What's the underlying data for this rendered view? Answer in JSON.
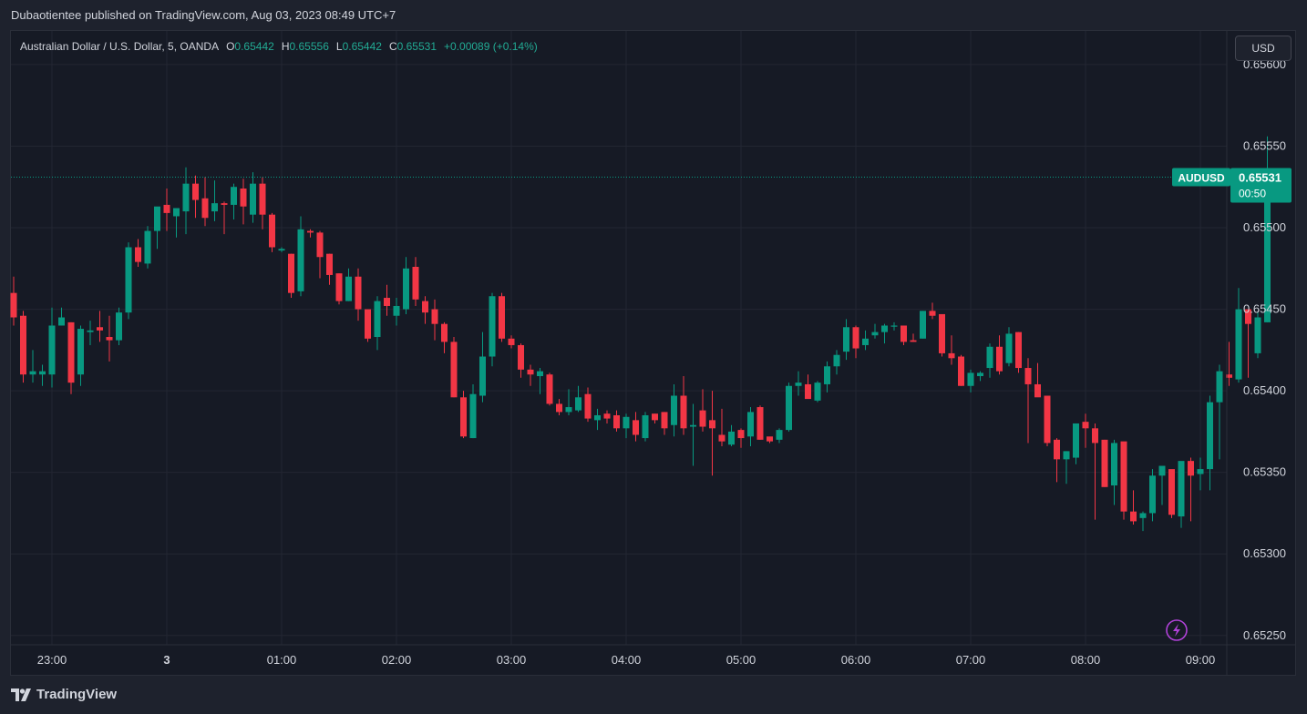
{
  "header": {
    "published_text": "Dubaotientee published on TradingView.com, Aug 03, 2023 08:49 UTC+7"
  },
  "legend": {
    "symbol_text": "Australian Dollar / U.S. Dollar, 5, OANDA",
    "open_label": "O",
    "open_value": "0.65442",
    "high_label": "H",
    "high_value": "0.65556",
    "low_label": "L",
    "low_value": "0.65442",
    "close_label": "C",
    "close_value": "0.65531",
    "change_text": "+0.00089 (+0.14%)"
  },
  "currency_button": {
    "label": "USD"
  },
  "price_tag": {
    "symbol": "AUDUSD",
    "price": "0.65531",
    "countdown": "00:50",
    "color": "#089981"
  },
  "footer": {
    "brand": "TradingView"
  },
  "colors": {
    "up": "#089981",
    "down": "#f23645",
    "grid": "#232632",
    "axis_text": "#d1d4dc",
    "alert_icon": "#b042d8"
  },
  "icons": {
    "alert": "lightning-icon",
    "logo": "tradingview-logo-icon"
  },
  "chart_data": {
    "type": "candlestick",
    "interval": "5",
    "y_ticks": [
      "0.65600",
      "0.65550",
      "0.65500",
      "0.65450",
      "0.65400",
      "0.65350",
      "0.65300",
      "0.65250"
    ],
    "y_range": [
      0.652443,
      0.656206
    ],
    "x_ticks": [
      {
        "label": "23:00",
        "index": 4
      },
      {
        "label": "3",
        "index": 16
      },
      {
        "label": "01:00",
        "index": 28
      },
      {
        "label": "02:00",
        "index": 40
      },
      {
        "label": "03:00",
        "index": 52
      },
      {
        "label": "04:00",
        "index": 64
      },
      {
        "label": "05:00",
        "index": 76
      },
      {
        "label": "06:00",
        "index": 88
      },
      {
        "label": "07:00",
        "index": 100
      },
      {
        "label": "08:00",
        "index": 112
      },
      {
        "label": "09:00",
        "index": 124
      }
    ],
    "grid": true,
    "last_price_line": 0.65531,
    "candles": [
      [
        0.6546,
        0.6547,
        0.6544,
        0.65445
      ],
      [
        0.65446,
        0.65449,
        0.65405,
        0.6541
      ],
      [
        0.6541,
        0.65425,
        0.65405,
        0.65412
      ],
      [
        0.6541,
        0.65416,
        0.65403,
        0.65412
      ],
      [
        0.6541,
        0.65451,
        0.65402,
        0.6544
      ],
      [
        0.6544,
        0.65451,
        0.6544,
        0.65445
      ],
      [
        0.65442,
        0.65442,
        0.65398,
        0.65405
      ],
      [
        0.6541,
        0.6544,
        0.65403,
        0.65438
      ],
      [
        0.65436,
        0.65443,
        0.65428,
        0.65437
      ],
      [
        0.65439,
        0.65449,
        0.6543,
        0.65437
      ],
      [
        0.65433,
        0.65446,
        0.65418,
        0.65431
      ],
      [
        0.65431,
        0.65451,
        0.65428,
        0.65448
      ],
      [
        0.65448,
        0.65491,
        0.65444,
        0.65488
      ],
      [
        0.65488,
        0.65493,
        0.65476,
        0.65479
      ],
      [
        0.65478,
        0.65501,
        0.65475,
        0.65498
      ],
      [
        0.65498,
        0.65511,
        0.65487,
        0.65513
      ],
      [
        0.65514,
        0.65524,
        0.65498,
        0.65509
      ],
      [
        0.65507,
        0.6551,
        0.65494,
        0.65512
      ],
      [
        0.6551,
        0.65537,
        0.65496,
        0.65527
      ],
      [
        0.65527,
        0.65532,
        0.65506,
        0.65517
      ],
      [
        0.65518,
        0.65531,
        0.65501,
        0.65506
      ],
      [
        0.6551,
        0.65529,
        0.65504,
        0.65515
      ],
      [
        0.65515,
        0.65516,
        0.65496,
        0.65514
      ],
      [
        0.65514,
        0.65527,
        0.65505,
        0.65525
      ],
      [
        0.65524,
        0.6553,
        0.65502,
        0.65513
      ],
      [
        0.65508,
        0.65534,
        0.65503,
        0.65527
      ],
      [
        0.65527,
        0.65531,
        0.65499,
        0.65508
      ],
      [
        0.65508,
        0.65509,
        0.65485,
        0.65488
      ],
      [
        0.65486,
        0.65488,
        0.65485,
        0.65487
      ],
      [
        0.65484,
        0.65484,
        0.65457,
        0.6546
      ],
      [
        0.65461,
        0.65507,
        0.65458,
        0.65499
      ],
      [
        0.65498,
        0.65499,
        0.65494,
        0.65497
      ],
      [
        0.65497,
        0.65498,
        0.65469,
        0.65482
      ],
      [
        0.65484,
        0.65484,
        0.65465,
        0.65471
      ],
      [
        0.65472,
        0.65472,
        0.65453,
        0.65455
      ],
      [
        0.65455,
        0.65475,
        0.65455,
        0.6547
      ],
      [
        0.6547,
        0.65475,
        0.65443,
        0.6545
      ],
      [
        0.6545,
        0.65448,
        0.6543,
        0.65432
      ],
      [
        0.65433,
        0.65458,
        0.65425,
        0.65455
      ],
      [
        0.65457,
        0.65465,
        0.65446,
        0.65452
      ],
      [
        0.65446,
        0.65457,
        0.6544,
        0.65452
      ],
      [
        0.6545,
        0.65482,
        0.65447,
        0.65475
      ],
      [
        0.65476,
        0.65482,
        0.65452,
        0.65456
      ],
      [
        0.65455,
        0.65458,
        0.65441,
        0.65448
      ],
      [
        0.6545,
        0.65456,
        0.65431,
        0.65441
      ],
      [
        0.65441,
        0.65442,
        0.65423,
        0.6543
      ],
      [
        0.6543,
        0.65433,
        0.65396,
        0.65396
      ],
      [
        0.65396,
        0.654,
        0.65371,
        0.65372
      ],
      [
        0.65371,
        0.65404,
        0.65371,
        0.65398
      ],
      [
        0.65397,
        0.65436,
        0.65393,
        0.65421
      ],
      [
        0.65421,
        0.6546,
        0.65415,
        0.65458
      ],
      [
        0.65458,
        0.6546,
        0.6543,
        0.65432
      ],
      [
        0.65432,
        0.65434,
        0.65426,
        0.65428
      ],
      [
        0.65428,
        0.65429,
        0.65408,
        0.65413
      ],
      [
        0.65413,
        0.65416,
        0.65403,
        0.6541
      ],
      [
        0.65409,
        0.65414,
        0.65398,
        0.65412
      ],
      [
        0.6541,
        0.65411,
        0.65391,
        0.65392
      ],
      [
        0.65392,
        0.65395,
        0.65385,
        0.65387
      ],
      [
        0.65387,
        0.65401,
        0.65385,
        0.6539
      ],
      [
        0.65388,
        0.65403,
        0.65387,
        0.65396
      ],
      [
        0.65398,
        0.65402,
        0.65381,
        0.65383
      ],
      [
        0.65382,
        0.65389,
        0.65376,
        0.65385
      ],
      [
        0.65386,
        0.65388,
        0.6538,
        0.65383
      ],
      [
        0.65385,
        0.65388,
        0.65375,
        0.65377
      ],
      [
        0.65377,
        0.65386,
        0.65371,
        0.65384
      ],
      [
        0.65382,
        0.65387,
        0.65369,
        0.65373
      ],
      [
        0.65371,
        0.65387,
        0.65369,
        0.65385
      ],
      [
        0.65386,
        0.65386,
        0.6538,
        0.65382
      ],
      [
        0.65387,
        0.65387,
        0.65373,
        0.65377
      ],
      [
        0.65379,
        0.65404,
        0.65372,
        0.65397
      ],
      [
        0.65397,
        0.65409,
        0.65373,
        0.65377
      ],
      [
        0.65378,
        0.65392,
        0.65354,
        0.65379
      ],
      [
        0.65388,
        0.65401,
        0.65375,
        0.65378
      ],
      [
        0.65382,
        0.654,
        0.65348,
        0.65377
      ],
      [
        0.65373,
        0.65389,
        0.65366,
        0.65369
      ],
      [
        0.65367,
        0.65379,
        0.65366,
        0.65375
      ],
      [
        0.65376,
        0.65377,
        0.65365,
        0.65371
      ],
      [
        0.65372,
        0.6539,
        0.65366,
        0.65387
      ],
      [
        0.6539,
        0.65391,
        0.6537,
        0.6537
      ],
      [
        0.65372,
        0.65371,
        0.65368,
        0.65369
      ],
      [
        0.6537,
        0.65377,
        0.65368,
        0.65376
      ],
      [
        0.65376,
        0.65405,
        0.65375,
        0.65403
      ],
      [
        0.65403,
        0.65412,
        0.65397,
        0.65405
      ],
      [
        0.65404,
        0.6541,
        0.65396,
        0.65395
      ],
      [
        0.65394,
        0.65406,
        0.65393,
        0.65405
      ],
      [
        0.65404,
        0.65418,
        0.65399,
        0.65415
      ],
      [
        0.65415,
        0.65425,
        0.6541,
        0.65422
      ],
      [
        0.65424,
        0.65444,
        0.65419,
        0.65439
      ],
      [
        0.65439,
        0.6544,
        0.6542,
        0.65426
      ],
      [
        0.65428,
        0.65437,
        0.65425,
        0.65432
      ],
      [
        0.65434,
        0.65441,
        0.65432,
        0.65436
      ],
      [
        0.65436,
        0.65441,
        0.65429,
        0.6544
      ],
      [
        0.6544,
        0.65442,
        0.65437,
        0.6544
      ],
      [
        0.6544,
        0.65439,
        0.65428,
        0.6543
      ],
      [
        0.65431,
        0.65435,
        0.6543,
        0.6543
      ],
      [
        0.65432,
        0.65449,
        0.65432,
        0.65449
      ],
      [
        0.65449,
        0.65454,
        0.65444,
        0.65446
      ],
      [
        0.65447,
        0.65447,
        0.65421,
        0.65423
      ],
      [
        0.65423,
        0.65434,
        0.65416,
        0.6542
      ],
      [
        0.65421,
        0.65422,
        0.65403,
        0.65403
      ],
      [
        0.65403,
        0.65413,
        0.65399,
        0.65411
      ],
      [
        0.65409,
        0.65412,
        0.65406,
        0.65411
      ],
      [
        0.65414,
        0.65429,
        0.65408,
        0.65427
      ],
      [
        0.65427,
        0.65434,
        0.6541,
        0.65412
      ],
      [
        0.65417,
        0.65439,
        0.65415,
        0.65435
      ],
      [
        0.65436,
        0.65436,
        0.65411,
        0.65414
      ],
      [
        0.65414,
        0.6542,
        0.65368,
        0.65404
      ],
      [
        0.65404,
        0.65417,
        0.65397,
        0.65396
      ],
      [
        0.65397,
        0.65396,
        0.65366,
        0.65368
      ],
      [
        0.6537,
        0.65371,
        0.65344,
        0.65358
      ],
      [
        0.65358,
        0.65363,
        0.65343,
        0.65363
      ],
      [
        0.65359,
        0.6538,
        0.65355,
        0.6538
      ],
      [
        0.65381,
        0.65386,
        0.65365,
        0.65377
      ],
      [
        0.65377,
        0.6538,
        0.65321,
        0.65368
      ],
      [
        0.6537,
        0.6537,
        0.65341,
        0.65341
      ],
      [
        0.65342,
        0.6537,
        0.6533,
        0.65368
      ],
      [
        0.65369,
        0.65368,
        0.65321,
        0.65326
      ],
      [
        0.65326,
        0.65339,
        0.65318,
        0.6532
      ],
      [
        0.65322,
        0.65326,
        0.65314,
        0.65325
      ],
      [
        0.65325,
        0.65352,
        0.6532,
        0.65348
      ],
      [
        0.65348,
        0.65354,
        0.6533,
        0.65354
      ],
      [
        0.65352,
        0.65349,
        0.65322,
        0.65324
      ],
      [
        0.65323,
        0.65355,
        0.65316,
        0.65357
      ],
      [
        0.65357,
        0.65359,
        0.6532,
        0.65348
      ],
      [
        0.65349,
        0.65359,
        0.65339,
        0.65352
      ],
      [
        0.65352,
        0.65397,
        0.65339,
        0.65393
      ],
      [
        0.65393,
        0.65416,
        0.65358,
        0.65412
      ],
      [
        0.6541,
        0.6543,
        0.65403,
        0.65408
      ],
      [
        0.65407,
        0.65463,
        0.65405,
        0.6545
      ],
      [
        0.6545,
        0.65447,
        0.65408,
        0.65441
      ],
      [
        0.65423,
        0.65448,
        0.6542,
        0.65445
      ],
      [
        0.65442,
        0.65556,
        0.65442,
        0.65531
      ]
    ]
  }
}
